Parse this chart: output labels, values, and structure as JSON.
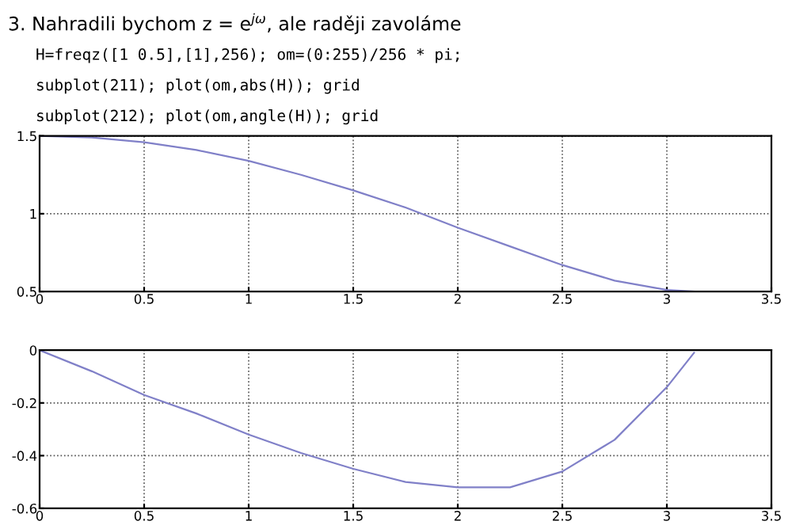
{
  "chart_data": [
    {
      "type": "line",
      "title": "3. Nahradili bychom z = e$^{jω}$, ale raději zavoláme",
      "annotations": [
        "H=freqz([1 0.5],[1],256); om=(0:255)/256 * pi;",
        "subplot(211); plot(om,abs(H)); grid",
        "subplot(212); plot(om,angle(H)); grid"
      ],
      "x": [
        0,
        0.25,
        0.5,
        0.75,
        1.0,
        1.25,
        1.5,
        1.75,
        2.0,
        2.25,
        2.5,
        2.75,
        3.0,
        3.13
      ],
      "series": [
        {
          "color": "#8080c8",
          "values": [
            1.5,
            1.49,
            1.46,
            1.41,
            1.34,
            1.25,
            1.15,
            1.04,
            0.91,
            0.79,
            0.67,
            0.57,
            0.51,
            0.5
          ]
        }
      ],
      "xlim": [
        0,
        3.5
      ],
      "xticks": [
        0,
        0.5,
        1,
        1.5,
        2,
        2.5,
        3,
        3.5
      ],
      "ylim": [
        0.5,
        1.5
      ],
      "yticks": [
        0.5,
        1,
        1.5
      ],
      "grid": true,
      "line_style": "solid"
    },
    {
      "type": "line",
      "x": [
        0,
        0.25,
        0.5,
        0.75,
        1.0,
        1.25,
        1.5,
        1.75,
        2.0,
        2.25,
        2.5,
        2.75,
        3.0,
        3.13
      ],
      "series": [
        {
          "color": "#8080c8",
          "values": [
            0,
            -0.08,
            -0.17,
            -0.24,
            -0.32,
            -0.39,
            -0.45,
            -0.5,
            -0.52,
            -0.52,
            -0.46,
            -0.34,
            -0.14,
            -0.01
          ]
        }
      ],
      "xlim": [
        0,
        3.5
      ],
      "xticks": [
        0,
        0.5,
        1,
        1.5,
        2,
        2.5,
        3,
        3.5
      ],
      "ylim": [
        -0.6,
        0
      ],
      "yticks": [
        -0.6,
        -0.4,
        -0.2,
        0
      ],
      "grid": true,
      "line_style": "solid"
    }
  ]
}
